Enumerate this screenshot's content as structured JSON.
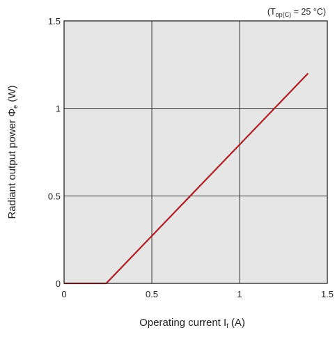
{
  "chart_data": {
    "type": "line",
    "title": "",
    "condition_note": {
      "prefix": "(T",
      "subscript": "op(C)",
      "suffix": " = 25 °C)"
    },
    "xlabel": {
      "main": "Operating current I",
      "subscript": "f",
      "unit": " (A)"
    },
    "ylabel": {
      "main": "Radiant output power Φ",
      "subscript": "e",
      "unit": " (W)"
    },
    "xlim": [
      0,
      1.5
    ],
    "ylim": [
      0,
      1.5
    ],
    "x_ticks": [
      0,
      0.5,
      1,
      1.5
    ],
    "x_tick_labels": [
      "0",
      "0.5",
      "1",
      "1.5"
    ],
    "y_ticks": [
      0,
      0.5,
      1,
      1.5
    ],
    "y_tick_labels": [
      "0",
      "0.5",
      "1",
      "1.5"
    ],
    "grid": true,
    "plot_background": "#e6e6e6",
    "series": [
      {
        "color": "#b01e23",
        "x": [
          0,
          0.24,
          1.39
        ],
        "y": [
          0,
          0,
          1.2
        ]
      }
    ]
  }
}
